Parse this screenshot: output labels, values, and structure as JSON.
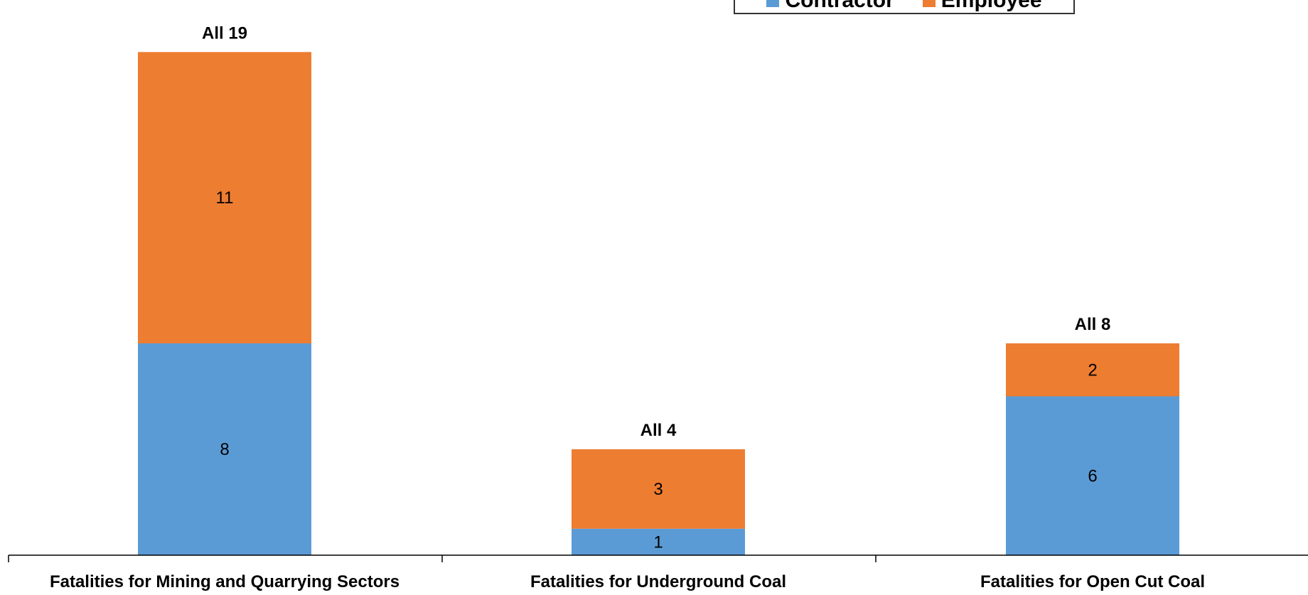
{
  "chart_data": {
    "type": "bar",
    "stacked": true,
    "categories": [
      "Fatalities for Mining and Quarrying Sectors",
      "Fatalities for Underground Coal",
      "Fatalities for Open Cut Coal"
    ],
    "series": [
      {
        "name": "Contractor",
        "values": [
          8,
          1,
          6
        ],
        "color": "#5B9BD5"
      },
      {
        "name": "Employee",
        "values": [
          11,
          3,
          2
        ],
        "color": "#ED7D31"
      }
    ],
    "total_labels": [
      "All 19",
      "All 4",
      "All 8"
    ],
    "ylim": [
      0,
      19
    ],
    "grid": false,
    "legend_position": "top-right"
  }
}
